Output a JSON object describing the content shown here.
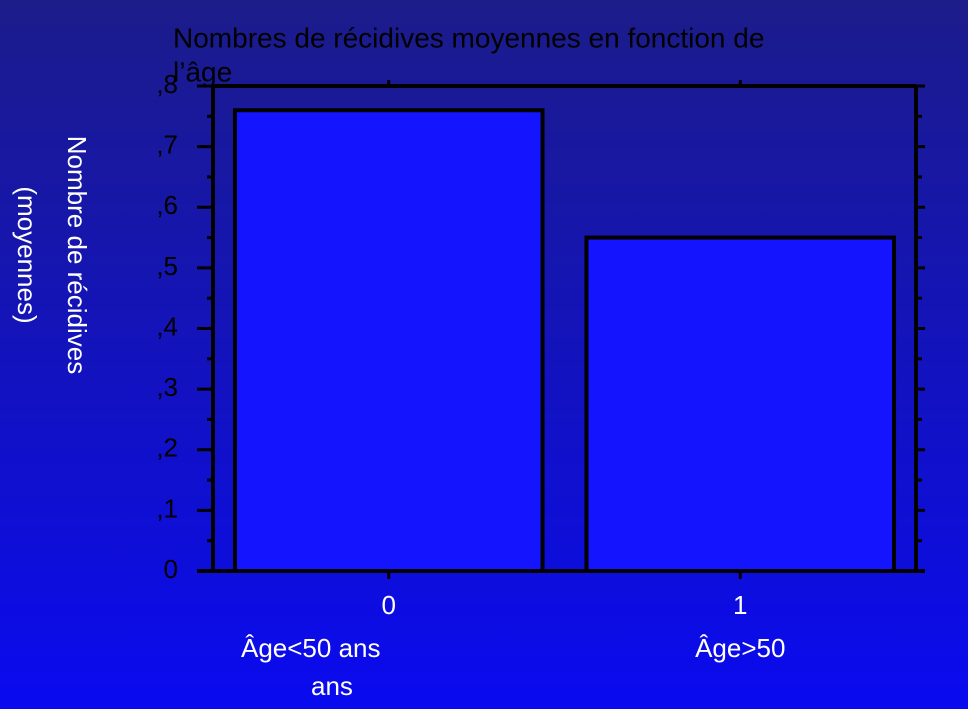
{
  "chart_data": {
    "type": "bar",
    "title": [
      "Nombres  de récidives moyennes en fonction de",
      "l’âge"
    ],
    "ylabel": [
      "Nombre de récidives",
      "(moyennes)"
    ],
    "categories": [
      "0",
      "1"
    ],
    "category_notes": [
      [
        "Âge<50 ans",
        "ans"
      ],
      [
        "Âge>50"
      ]
    ],
    "values": [
      0.76,
      0.55
    ],
    "color": "#1414ff",
    "ylim": [
      0,
      0.8
    ],
    "yticks": [
      0,
      {
        "value": 0.1,
        "label": ",1"
      },
      {
        "value": 0.2,
        "label": ",2"
      },
      {
        "value": 0.3,
        "label": ",3"
      },
      {
        "value": 0.4,
        "label": ",4"
      },
      {
        "value": 0.5,
        "label": ",5"
      },
      {
        "value": 0.6,
        "label": ",6"
      },
      {
        "value": 0.7,
        "label": ",7"
      },
      {
        "value": 0.8,
        "label": ",8"
      }
    ]
  }
}
